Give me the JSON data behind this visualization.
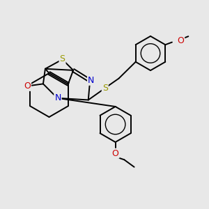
{
  "bg_color": "#e8e8e8",
  "S_color": "#999900",
  "N_color": "#0000cc",
  "O_color": "#cc0000",
  "bond_lw": 1.4,
  "font_size": 8.5,
  "xlim": [
    0,
    10
  ],
  "ylim": [
    0,
    10
  ]
}
